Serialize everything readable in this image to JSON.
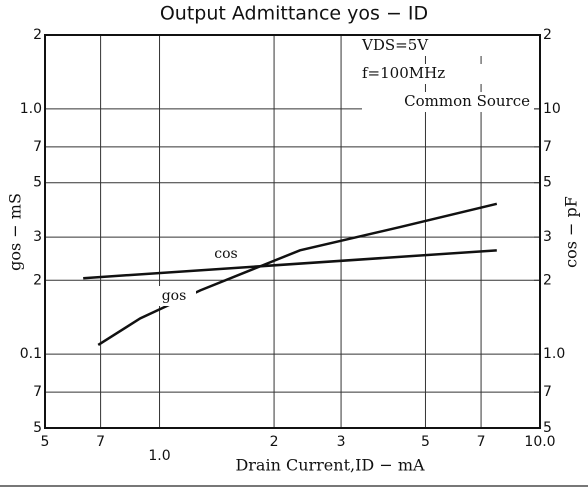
{
  "chart_data": {
    "type": "line",
    "title": "Output Admittance yos − ID",
    "x_label": "Drain Current,ID − mA",
    "y_label": "gos − mS",
    "y2_label": "cos − pF",
    "annotations": [
      "VDS=5V",
      "f=100MHz",
      "Common Source"
    ],
    "xscale": "log",
    "yscale": "log",
    "y2scale": "log",
    "grid": true,
    "xlim": [
      0.5,
      10
    ],
    "xticks": [
      {
        "value": 0.5,
        "label": "5"
      },
      {
        "value": 0.7,
        "label": "7"
      },
      {
        "value": 1,
        "label": "1.0"
      },
      2,
      3,
      5,
      7,
      {
        "value": 10,
        "label": "10.0"
      }
    ],
    "ylim": [
      0.05,
      2
    ],
    "yticks": [
      2,
      {
        "value": 1,
        "label": "1.0"
      },
      {
        "value": 0.7,
        "label": "7"
      },
      {
        "value": 0.5,
        "label": "5"
      },
      {
        "value": 0.3,
        "label": "3"
      },
      {
        "value": 0.2,
        "label": "2"
      },
      0.1,
      {
        "value": 0.07,
        "label": "7"
      },
      {
        "value": 0.05,
        "label": "5"
      }
    ],
    "y2lim": [
      0.5,
      20
    ],
    "y2ticks": [
      {
        "value": 20,
        "label": "2"
      },
      10,
      7,
      5,
      3,
      2,
      {
        "value": 1,
        "label": "1.0"
      },
      {
        "value": 0.7,
        "label": "7"
      },
      {
        "value": 0.5,
        "label": "5"
      }
    ],
    "series": [
      {
        "name": "cos",
        "color": "#111111",
        "axis": "y2",
        "x": [
          0.63,
          7.7
        ],
        "values": [
          2.04,
          2.65
        ]
      },
      {
        "name": "gos",
        "color": "#111111",
        "axis": "y",
        "x": [
          0.69,
          0.89,
          1.28,
          2.34,
          4.3,
          7.7
        ],
        "values": [
          0.109,
          0.14,
          0.182,
          0.265,
          0.33,
          0.41
        ]
      }
    ]
  }
}
